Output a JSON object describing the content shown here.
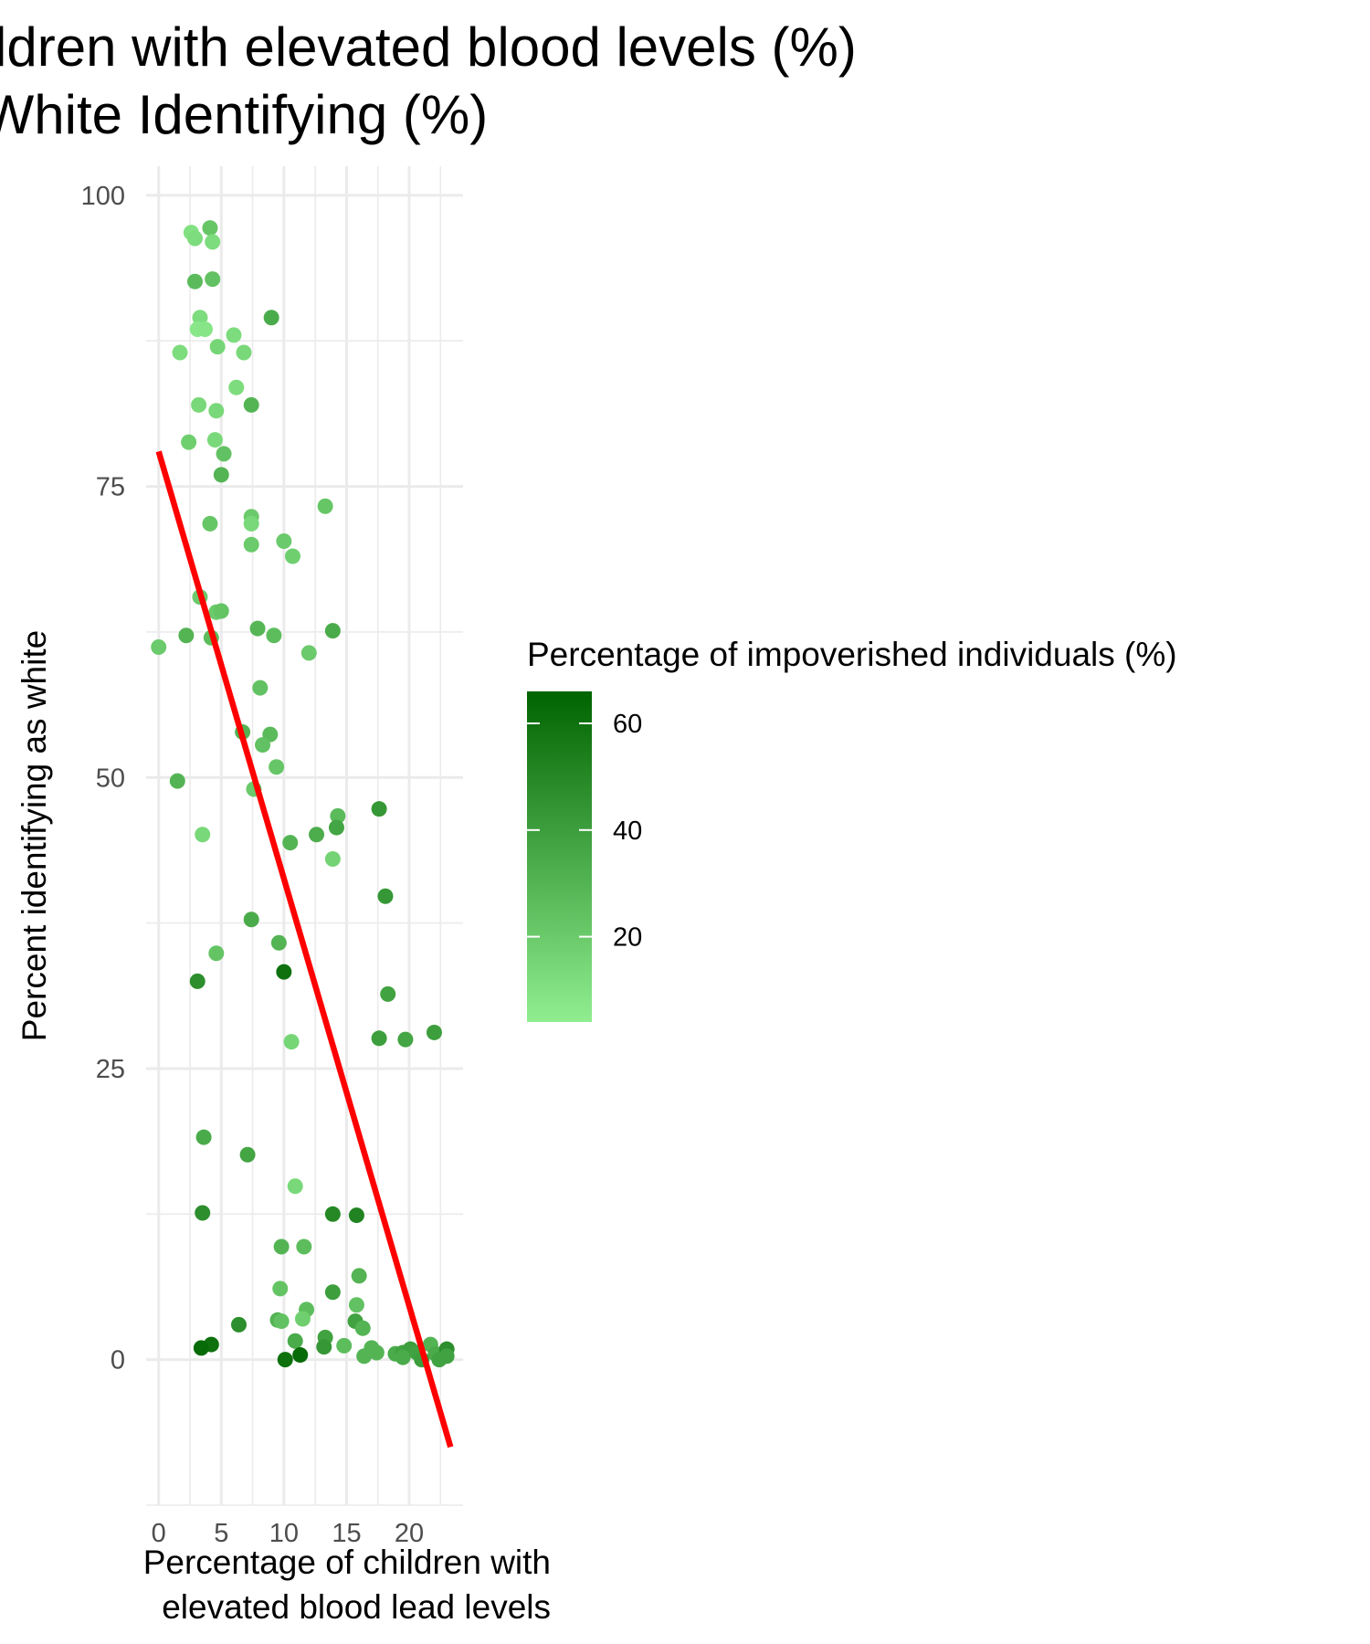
{
  "chart_data": {
    "type": "scatter",
    "title_lines": [
      "Children with elevated blood levels (%)",
      "vs White Identifying (%)"
    ],
    "xlabel_lines": [
      "Percentage of children with",
      "elevated blood lead levels"
    ],
    "ylabel": "Percent identifying as white",
    "xlim": [
      -1,
      24.3
    ],
    "ylim": [
      -12.5,
      102.5
    ],
    "x_ticks": [
      0,
      5,
      10,
      15,
      20
    ],
    "y_ticks": [
      0,
      25,
      50,
      75,
      100
    ],
    "x_minor_ticks": [
      2.5,
      7.5,
      12.5,
      17.5,
      22.5
    ],
    "y_minor_ticks": [
      -12.5,
      12.5,
      37.5,
      62.5,
      87.5
    ],
    "grid": true,
    "color_scale": {
      "title": "Percentage of impoverished individuals (%)",
      "low_color": "#90ee90",
      "high_color": "#006400",
      "range": [
        4,
        66
      ],
      "ticks": [
        20,
        40,
        60
      ],
      "legend_position": "right"
    },
    "trend_line": {
      "color": "#ff0000",
      "x": [
        0,
        23.3
      ],
      "y": [
        78,
        -7.5
      ]
    },
    "points": [
      {
        "x": 2.6,
        "y": 96.8,
        "c": 10
      },
      {
        "x": 2.9,
        "y": 96.3,
        "c": 12
      },
      {
        "x": 4.1,
        "y": 97.2,
        "c": 22
      },
      {
        "x": 4.3,
        "y": 96.0,
        "c": 12
      },
      {
        "x": 2.9,
        "y": 92.6,
        "c": 27
      },
      {
        "x": 4.3,
        "y": 92.8,
        "c": 24
      },
      {
        "x": 3.3,
        "y": 89.5,
        "c": 12
      },
      {
        "x": 3.1,
        "y": 88.5,
        "c": 7
      },
      {
        "x": 3.7,
        "y": 88.5,
        "c": 8
      },
      {
        "x": 6.0,
        "y": 88.0,
        "c": 12
      },
      {
        "x": 9.0,
        "y": 89.5,
        "c": 34
      },
      {
        "x": 1.7,
        "y": 86.5,
        "c": 12
      },
      {
        "x": 4.7,
        "y": 87.0,
        "c": 15
      },
      {
        "x": 6.8,
        "y": 86.5,
        "c": 14
      },
      {
        "x": 6.2,
        "y": 83.5,
        "c": 12
      },
      {
        "x": 3.2,
        "y": 82.0,
        "c": 14
      },
      {
        "x": 4.6,
        "y": 81.5,
        "c": 14
      },
      {
        "x": 7.4,
        "y": 82.0,
        "c": 30
      },
      {
        "x": 2.4,
        "y": 78.8,
        "c": 18
      },
      {
        "x": 4.5,
        "y": 79.0,
        "c": 14
      },
      {
        "x": 5.2,
        "y": 77.8,
        "c": 24
      },
      {
        "x": 5.0,
        "y": 76.0,
        "c": 30
      },
      {
        "x": 4.1,
        "y": 71.8,
        "c": 22
      },
      {
        "x": 7.4,
        "y": 72.4,
        "c": 20
      },
      {
        "x": 7.4,
        "y": 71.8,
        "c": 14
      },
      {
        "x": 13.3,
        "y": 73.3,
        "c": 22
      },
      {
        "x": 7.4,
        "y": 70.0,
        "c": 20
      },
      {
        "x": 10.0,
        "y": 70.3,
        "c": 20
      },
      {
        "x": 10.7,
        "y": 69.0,
        "c": 18
      },
      {
        "x": 3.3,
        "y": 65.5,
        "c": 20
      },
      {
        "x": 4.6,
        "y": 64.2,
        "c": 20
      },
      {
        "x": 5.0,
        "y": 64.3,
        "c": 23
      },
      {
        "x": 0.0,
        "y": 61.2,
        "c": 20
      },
      {
        "x": 2.2,
        "y": 62.2,
        "c": 30
      },
      {
        "x": 4.2,
        "y": 62.0,
        "c": 26
      },
      {
        "x": 7.9,
        "y": 62.8,
        "c": 29
      },
      {
        "x": 9.2,
        "y": 62.2,
        "c": 26
      },
      {
        "x": 12.0,
        "y": 60.7,
        "c": 20
      },
      {
        "x": 13.9,
        "y": 62.6,
        "c": 34
      },
      {
        "x": 8.1,
        "y": 57.7,
        "c": 24
      },
      {
        "x": 6.7,
        "y": 53.9,
        "c": 30
      },
      {
        "x": 8.9,
        "y": 53.7,
        "c": 27
      },
      {
        "x": 8.3,
        "y": 52.8,
        "c": 24
      },
      {
        "x": 9.4,
        "y": 50.9,
        "c": 22
      },
      {
        "x": 1.5,
        "y": 49.7,
        "c": 30
      },
      {
        "x": 7.6,
        "y": 49.0,
        "c": 20
      },
      {
        "x": 17.6,
        "y": 47.3,
        "c": 43
      },
      {
        "x": 14.3,
        "y": 46.7,
        "c": 27
      },
      {
        "x": 3.5,
        "y": 45.1,
        "c": 14
      },
      {
        "x": 12.6,
        "y": 45.1,
        "c": 33
      },
      {
        "x": 14.2,
        "y": 45.7,
        "c": 37
      },
      {
        "x": 10.5,
        "y": 44.4,
        "c": 30
      },
      {
        "x": 13.9,
        "y": 43.0,
        "c": 16
      },
      {
        "x": 18.1,
        "y": 39.8,
        "c": 43
      },
      {
        "x": 7.4,
        "y": 37.8,
        "c": 34
      },
      {
        "x": 4.6,
        "y": 34.9,
        "c": 23
      },
      {
        "x": 9.6,
        "y": 35.8,
        "c": 30
      },
      {
        "x": 10.0,
        "y": 33.3,
        "c": 60
      },
      {
        "x": 3.1,
        "y": 32.5,
        "c": 47
      },
      {
        "x": 18.3,
        "y": 31.4,
        "c": 38
      },
      {
        "x": 10.6,
        "y": 27.3,
        "c": 15
      },
      {
        "x": 17.6,
        "y": 27.6,
        "c": 40
      },
      {
        "x": 19.7,
        "y": 27.5,
        "c": 37
      },
      {
        "x": 22.0,
        "y": 28.1,
        "c": 40
      },
      {
        "x": 3.6,
        "y": 19.1,
        "c": 34
      },
      {
        "x": 7.1,
        "y": 17.6,
        "c": 37
      },
      {
        "x": 10.9,
        "y": 14.9,
        "c": 14
      },
      {
        "x": 3.5,
        "y": 12.6,
        "c": 47
      },
      {
        "x": 13.9,
        "y": 12.5,
        "c": 50
      },
      {
        "x": 15.8,
        "y": 12.4,
        "c": 52
      },
      {
        "x": 9.8,
        "y": 9.7,
        "c": 30
      },
      {
        "x": 11.6,
        "y": 9.7,
        "c": 26
      },
      {
        "x": 16.0,
        "y": 7.2,
        "c": 30
      },
      {
        "x": 9.7,
        "y": 6.1,
        "c": 23
      },
      {
        "x": 13.9,
        "y": 5.8,
        "c": 40
      },
      {
        "x": 15.8,
        "y": 4.7,
        "c": 24
      },
      {
        "x": 11.8,
        "y": 4.3,
        "c": 26
      },
      {
        "x": 9.5,
        "y": 3.4,
        "c": 30
      },
      {
        "x": 9.8,
        "y": 3.3,
        "c": 24
      },
      {
        "x": 11.5,
        "y": 3.5,
        "c": 18
      },
      {
        "x": 15.7,
        "y": 3.3,
        "c": 38
      },
      {
        "x": 16.3,
        "y": 2.7,
        "c": 30
      },
      {
        "x": 6.4,
        "y": 3.0,
        "c": 47
      },
      {
        "x": 13.3,
        "y": 1.9,
        "c": 38
      },
      {
        "x": 10.9,
        "y": 1.6,
        "c": 34
      },
      {
        "x": 4.2,
        "y": 1.3,
        "c": 60
      },
      {
        "x": 3.4,
        "y": 1.0,
        "c": 63
      },
      {
        "x": 13.2,
        "y": 1.1,
        "c": 43
      },
      {
        "x": 14.8,
        "y": 1.2,
        "c": 26
      },
      {
        "x": 17.0,
        "y": 1.0,
        "c": 30
      },
      {
        "x": 17.4,
        "y": 0.6,
        "c": 30
      },
      {
        "x": 16.4,
        "y": 0.3,
        "c": 30
      },
      {
        "x": 11.3,
        "y": 0.4,
        "c": 63
      },
      {
        "x": 10.1,
        "y": 0.0,
        "c": 60
      },
      {
        "x": 18.9,
        "y": 0.5,
        "c": 34
      },
      {
        "x": 19.5,
        "y": 0.6,
        "c": 38
      },
      {
        "x": 20.1,
        "y": 0.9,
        "c": 40
      },
      {
        "x": 19.5,
        "y": 0.2,
        "c": 34
      },
      {
        "x": 20.6,
        "y": 0.6,
        "c": 38
      },
      {
        "x": 21.0,
        "y": 0.0,
        "c": 40
      },
      {
        "x": 21.7,
        "y": 1.3,
        "c": 30
      },
      {
        "x": 22.1,
        "y": 0.5,
        "c": 34
      },
      {
        "x": 22.4,
        "y": 0.0,
        "c": 38
      },
      {
        "x": 23.0,
        "y": 0.9,
        "c": 47
      },
      {
        "x": 23.0,
        "y": 0.3,
        "c": 38
      }
    ]
  }
}
